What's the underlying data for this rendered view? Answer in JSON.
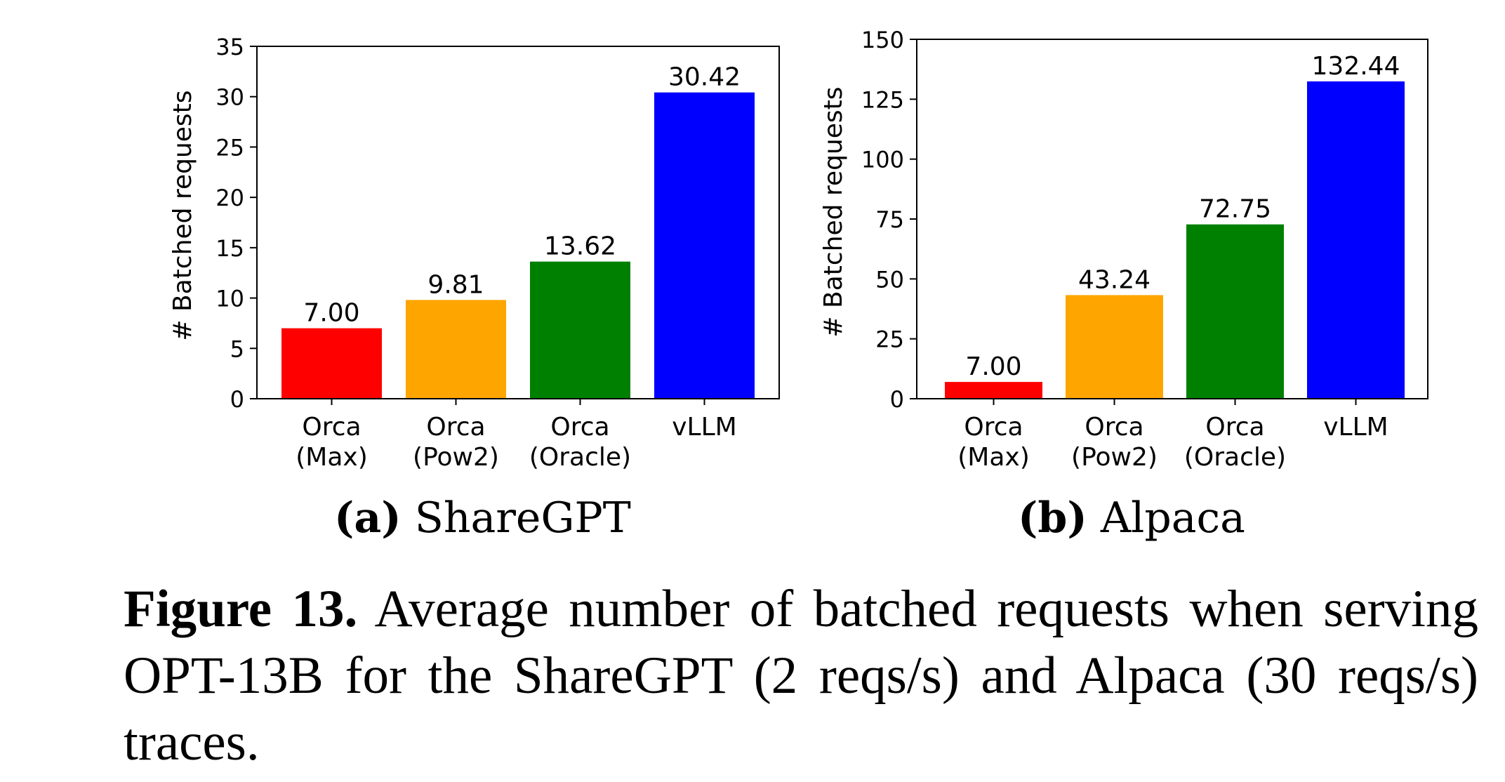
{
  "chart_data": [
    {
      "type": "bar",
      "categories": [
        [
          "Orca",
          "(Max)"
        ],
        [
          "Orca",
          "(Pow2)"
        ],
        [
          "Orca",
          "(Oracle)"
        ],
        [
          "vLLM"
        ]
      ],
      "values": [
        7.0,
        9.81,
        13.62,
        30.42
      ],
      "value_labels": [
        "7.00",
        "9.81",
        "13.62",
        "30.42"
      ],
      "colors": [
        "#ff0000",
        "#ffa500",
        "#008000",
        "#0000ff"
      ],
      "ylabel": "# Batched requests",
      "ylim": [
        0,
        35
      ],
      "yticks": [
        0,
        5,
        10,
        15,
        20,
        25,
        30,
        35
      ],
      "grid": false,
      "subcaption_letter": "(a)",
      "subcaption_name": "ShareGPT"
    },
    {
      "type": "bar",
      "categories": [
        [
          "Orca",
          "(Max)"
        ],
        [
          "Orca",
          "(Pow2)"
        ],
        [
          "Orca",
          "(Oracle)"
        ],
        [
          "vLLM"
        ]
      ],
      "values": [
        7.0,
        43.24,
        72.75,
        132.44
      ],
      "value_labels": [
        "7.00",
        "43.24",
        "72.75",
        "132.44"
      ],
      "colors": [
        "#ff0000",
        "#ffa500",
        "#008000",
        "#0000ff"
      ],
      "ylabel": "# Batched requests",
      "ylim": [
        0,
        150
      ],
      "yticks": [
        0,
        25,
        50,
        75,
        100,
        125,
        150
      ],
      "grid": false,
      "subcaption_letter": "(b)",
      "subcaption_name": "Alpaca"
    }
  ],
  "caption": {
    "label": "Figure 13.",
    "text": "Average number of batched requests when serving OPT-13B for the ShareGPT (2 reqs/s) and Alpaca (30 reqs/s) traces."
  }
}
